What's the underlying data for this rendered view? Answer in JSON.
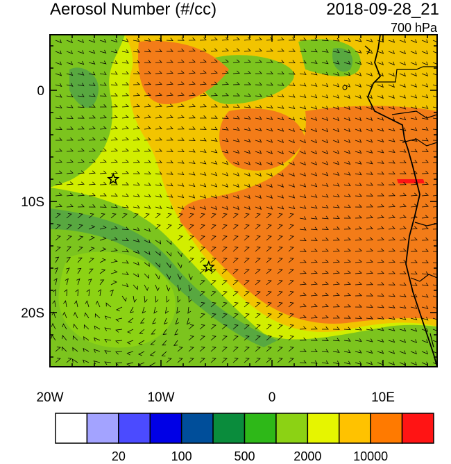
{
  "title": "Aerosol Number (#/cc)",
  "timestamp": "2018-09-28_21",
  "level": "700 hPa",
  "axes": {
    "lat_ticks": [
      "0",
      "10S",
      "20S"
    ],
    "lon_ticks": [
      "20W",
      "10W",
      "0",
      "10E"
    ]
  },
  "markers": [
    {
      "name": "station-star",
      "lon": -14.3,
      "lat": -8.0
    },
    {
      "name": "station-star",
      "lon": -5.7,
      "lat": -15.9
    }
  ],
  "colorbar": {
    "colors": [
      "#ffffff",
      "#a3a3ff",
      "#4b4bff",
      "#0000e6",
      "#004e9a",
      "#0a8c3c",
      "#2eb818",
      "#8cd214",
      "#e6f500",
      "#ffc200",
      "#ff7a00",
      "#ff1414"
    ],
    "labels": [
      "20",
      "100",
      "500",
      "2000",
      "10000"
    ]
  },
  "field_colors": {
    "dark_green": "#58a840",
    "green": "#7cc41e",
    "light_green": "#d2ee00",
    "yellow": "#f2c400",
    "orange": "#f37c18"
  }
}
